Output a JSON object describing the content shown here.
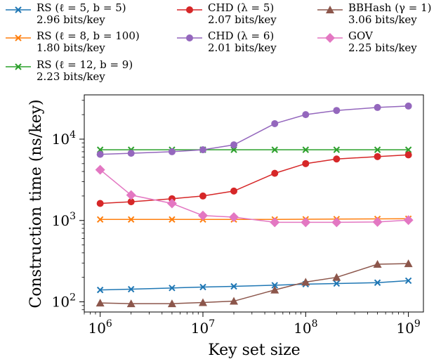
{
  "chart_data": {
    "type": "line",
    "xscale": "log",
    "yscale": "log",
    "xlabel": "Key set size",
    "ylabel": "Construction time (ns/key)",
    "xlim": [
      700000,
      1400000000
    ],
    "ylim": [
      75,
      35000
    ],
    "x": [
      1000000,
      2000000,
      5000000,
      10000000,
      20000000,
      50000000,
      100000000,
      200000000,
      500000000,
      1000000000
    ],
    "xticks": [
      {
        "value": 1000000,
        "base": "10",
        "exp": "6"
      },
      {
        "value": 10000000,
        "base": "10",
        "exp": "7"
      },
      {
        "value": 100000000,
        "base": "10",
        "exp": "8"
      },
      {
        "value": 1000000000,
        "base": "10",
        "exp": "9"
      }
    ],
    "yticks": [
      {
        "value": 100,
        "base": "10",
        "exp": "2"
      },
      {
        "value": 1000,
        "base": "10",
        "exp": "3"
      },
      {
        "value": 10000,
        "base": "10",
        "exp": "4"
      }
    ],
    "legend_position": "top",
    "series": [
      {
        "name": "RS (ℓ = 5, b = 5)",
        "detail": "2.96 bits/key",
        "color": "#1f77b4",
        "marker": "x",
        "values": [
          140,
          143,
          148,
          152,
          155,
          160,
          165,
          168,
          172,
          182
        ]
      },
      {
        "name": "RS (ℓ = 8, b = 100)",
        "detail": "1.80 bits/key",
        "color": "#ff7f0e",
        "marker": "x",
        "values": [
          1030,
          1030,
          1030,
          1030,
          1030,
          1030,
          1035,
          1040,
          1045,
          1050
        ]
      },
      {
        "name": "RS (ℓ = 12, b = 9)",
        "detail": "2.23 bits/key",
        "color": "#2ca02c",
        "marker": "x",
        "values": [
          7400,
          7400,
          7400,
          7400,
          7400,
          7400,
          7400,
          7400,
          7400,
          7400
        ]
      },
      {
        "name": "CHD (λ = 5)",
        "detail": "2.07 bits/key",
        "color": "#d62728",
        "marker": "o",
        "values": [
          1620,
          1700,
          1850,
          2000,
          2300,
          3800,
          5000,
          5700,
          6100,
          6400
        ]
      },
      {
        "name": "CHD (λ = 6)",
        "detail": "2.01 bits/key",
        "color": "#9467bd",
        "marker": "o",
        "values": [
          6500,
          6700,
          7000,
          7400,
          8500,
          15500,
          20000,
          22500,
          24500,
          25500
        ]
      },
      {
        "name": "GOV",
        "detail": "2.25 bits/key",
        "color": "#e377c2",
        "marker": "D",
        "values": [
          4200,
          2050,
          1620,
          1150,
          1100,
          950,
          950,
          950,
          960,
          1010
        ]
      },
      {
        "name": "BBHash (γ = 1)",
        "detail": "3.06 bits/key",
        "color": "#8c564b",
        "marker": "^",
        "values": [
          97,
          95,
          95,
          98,
          102,
          140,
          175,
          200,
          290,
          295
        ]
      }
    ]
  }
}
